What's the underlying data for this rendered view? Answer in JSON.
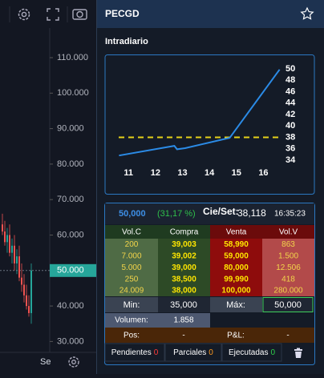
{
  "price_chart": {
    "yticks": [
      {
        "value": 110,
        "label": "110.000"
      },
      {
        "value": 100,
        "label": "100.000"
      },
      {
        "value": 90,
        "label": "90.000"
      },
      {
        "value": 80,
        "label": "80.000"
      },
      {
        "value": 70,
        "label": "70.000"
      },
      {
        "value": 60,
        "label": "60.000"
      },
      {
        "value": 40,
        "label": "40.000"
      },
      {
        "value": 30,
        "label": "30.000"
      }
    ],
    "last_price": {
      "value": 50,
      "label": "50.000"
    },
    "candles": [
      {
        "open": 63,
        "high": 66,
        "low": 60,
        "close": 61
      },
      {
        "open": 61,
        "high": 64,
        "low": 57,
        "close": 58
      },
      {
        "open": 58,
        "high": 62,
        "low": 55,
        "close": 60
      },
      {
        "open": 60,
        "high": 63,
        "low": 54,
        "close": 55
      },
      {
        "open": 55,
        "high": 59,
        "low": 52,
        "close": 57
      },
      {
        "open": 57,
        "high": 60,
        "low": 50,
        "close": 52
      },
      {
        "open": 52,
        "high": 56,
        "low": 49,
        "close": 54
      },
      {
        "open": 54,
        "high": 57,
        "low": 47,
        "close": 48
      },
      {
        "open": 48,
        "high": 52,
        "low": 44,
        "close": 46
      },
      {
        "open": 46,
        "high": 49,
        "low": 41,
        "close": 43
      },
      {
        "open": 43,
        "high": 46,
        "low": 39,
        "close": 40
      },
      {
        "open": 40,
        "high": 43,
        "low": 37,
        "close": 38
      },
      {
        "open": 38,
        "high": 52,
        "low": 35,
        "close": 50
      }
    ],
    "x_label": "Se"
  },
  "panel": {
    "title": "PECGD"
  },
  "intraday": {
    "title": "Intradiario",
    "x": [
      10.65,
      12.7,
      12.8,
      13.1,
      14.75,
      16.6
    ],
    "values": [
      34.8,
      36.5,
      35.9,
      36.1,
      37.9,
      49.9
    ],
    "reference": 38,
    "xlim": [
      10.4,
      16.7
    ],
    "ylim": [
      33,
      51
    ],
    "xticks": [
      11,
      12,
      13,
      14,
      15,
      16
    ],
    "yticks": [
      34,
      36,
      38,
      40,
      42,
      44,
      46,
      48,
      50
    ]
  },
  "quote": {
    "last": "50,000",
    "change": "(31,17 %)",
    "close_label": "Cie/Set:",
    "close": "38,118",
    "time": "16:35:23"
  },
  "book": {
    "headers": [
      "Vol.C",
      "Compra",
      "Venta",
      "Vol.V"
    ],
    "rows": [
      [
        "200",
        "39,003",
        "58,990",
        "863"
      ],
      [
        "7.000",
        "39,002",
        "59,000",
        "1.500"
      ],
      [
        "5.000",
        "39,000",
        "80,000",
        "12.506"
      ],
      [
        "250",
        "38,500",
        "99,990",
        "418"
      ],
      [
        "24.009",
        "38,000",
        "100,000",
        "280.000"
      ]
    ]
  },
  "stats": {
    "min_label": "Min:",
    "min": "35,000",
    "max_label": "Máx:",
    "max": "50,000",
    "volume_label": "Volumen:",
    "volume": "1.858",
    "pos_label": "Pos:",
    "pos": "-",
    "pnl_label": "P&L:",
    "pnl": "-"
  },
  "tabs": [
    {
      "label": "Pendientes",
      "count": 0
    },
    {
      "label": "Parciales",
      "count": 0
    },
    {
      "label": "Ejecutadas",
      "count": 0
    }
  ]
}
